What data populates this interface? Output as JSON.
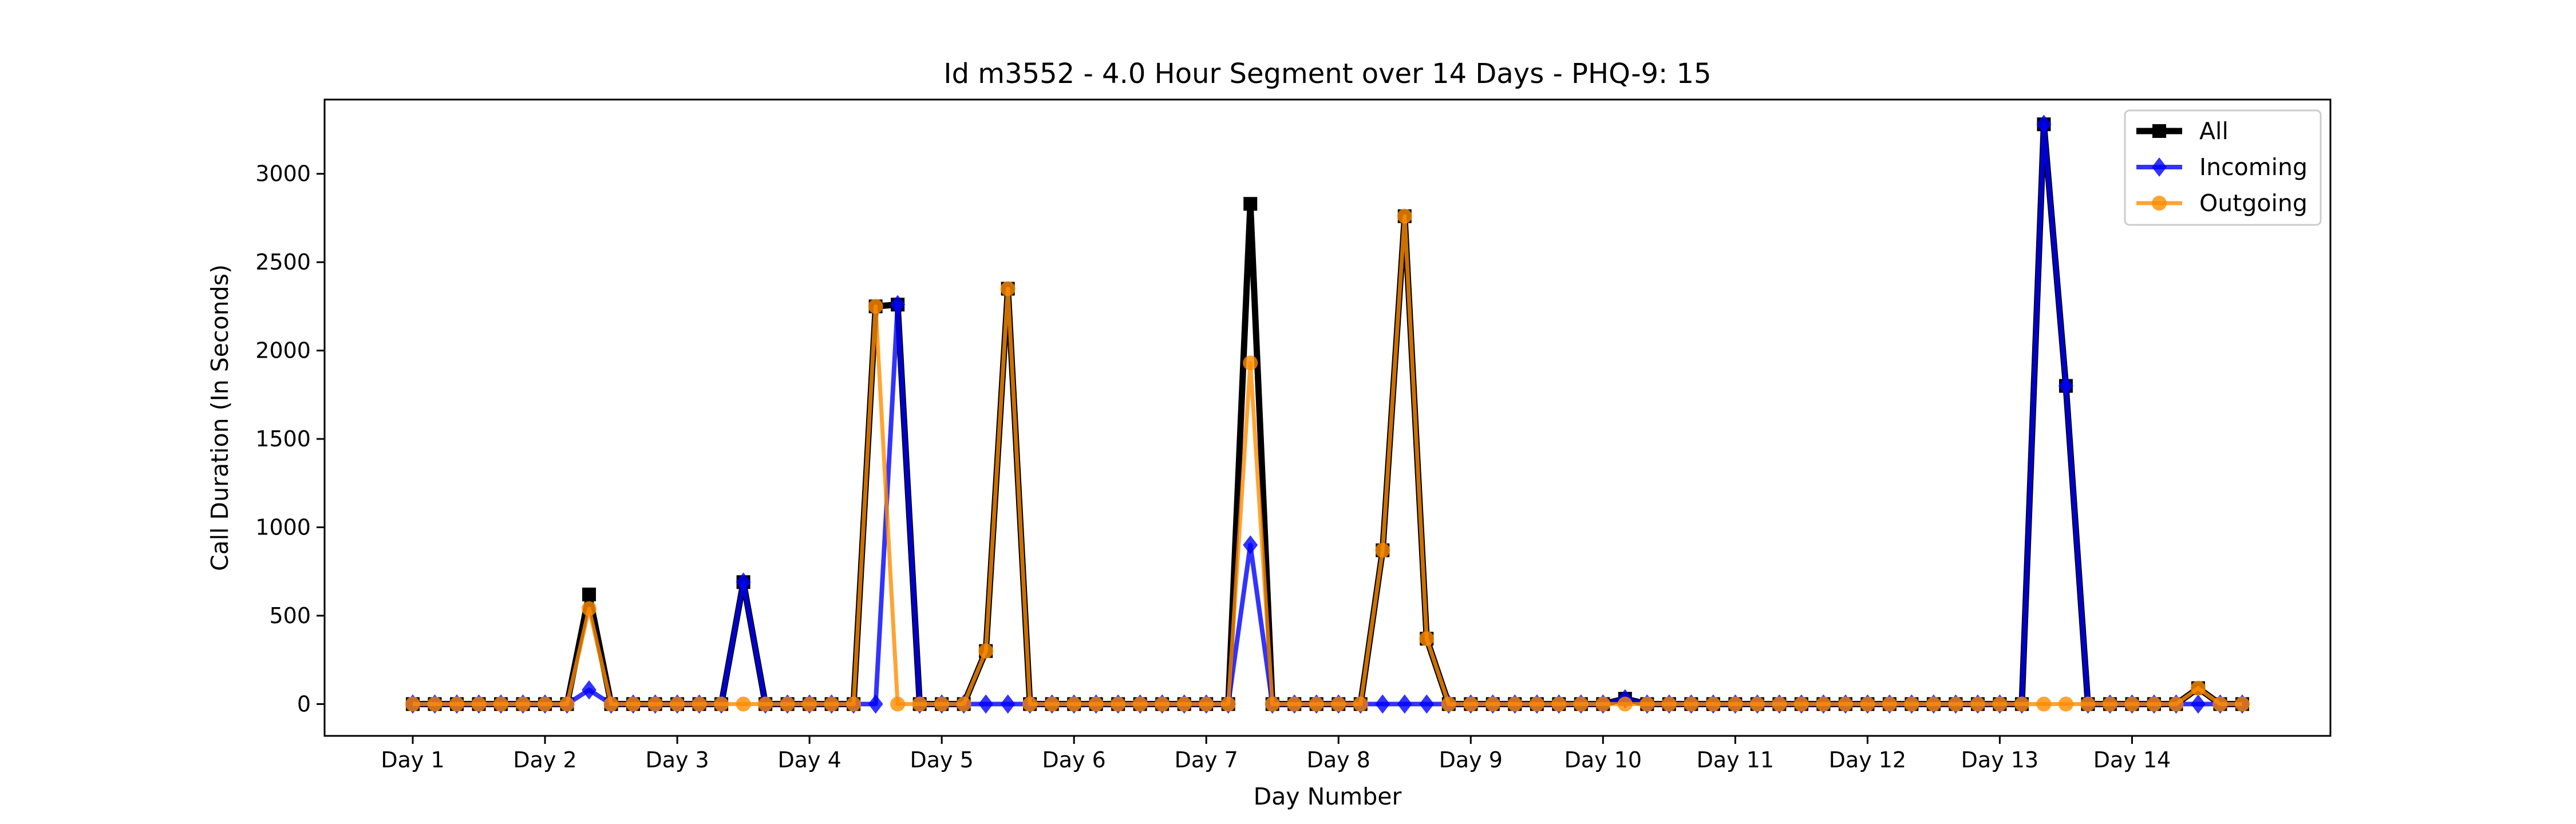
{
  "chart_data": {
    "type": "line",
    "title": "Id m3552 - 4.0 Hour Segment over 14 Days - PHQ-9: 15",
    "xlabel": "Day Number",
    "ylabel": "Call Duration (In Seconds)",
    "x_ticks": [
      "Day 1",
      "Day 2",
      "Day 3",
      "Day 4",
      "Day 5",
      "Day 6",
      "Day 7",
      "Day 8",
      "Day 9",
      "Day 10",
      "Day 11",
      "Day 12",
      "Day 13",
      "Day 14"
    ],
    "y_ticks": [
      0,
      500,
      1000,
      1500,
      2000,
      2500,
      3000
    ],
    "ylim": [
      -180,
      3420
    ],
    "xlim": [
      -4,
      87
    ],
    "legend_position": "top-right",
    "series": [
      {
        "name": "All",
        "color": "#000000",
        "marker": "square",
        "values": [
          0,
          0,
          0,
          0,
          0,
          0,
          0,
          0,
          620,
          0,
          0,
          0,
          0,
          0,
          0,
          690,
          0,
          0,
          0,
          0,
          0,
          2250,
          2260,
          0,
          0,
          0,
          300,
          2350,
          0,
          0,
          0,
          0,
          0,
          0,
          0,
          0,
          0,
          0,
          2830,
          0,
          0,
          0,
          0,
          0,
          870,
          2760,
          370,
          0,
          0,
          0,
          0,
          0,
          0,
          0,
          0,
          30,
          0,
          0,
          0,
          0,
          0,
          0,
          0,
          0,
          0,
          0,
          0,
          0,
          0,
          0,
          0,
          0,
          0,
          0,
          3280,
          1800,
          0,
          0,
          0,
          0,
          0,
          90,
          0,
          0
        ]
      },
      {
        "name": "Incoming",
        "color": "#0000ff",
        "marker": "diamond",
        "values": [
          0,
          0,
          0,
          0,
          0,
          0,
          0,
          0,
          80,
          0,
          0,
          0,
          0,
          0,
          0,
          690,
          0,
          0,
          0,
          0,
          0,
          0,
          2260,
          0,
          0,
          0,
          0,
          0,
          0,
          0,
          0,
          0,
          0,
          0,
          0,
          0,
          0,
          0,
          900,
          0,
          0,
          0,
          0,
          0,
          0,
          0,
          0,
          0,
          0,
          0,
          0,
          0,
          0,
          0,
          0,
          30,
          0,
          0,
          0,
          0,
          0,
          0,
          0,
          0,
          0,
          0,
          0,
          0,
          0,
          0,
          0,
          0,
          0,
          0,
          3280,
          1800,
          0,
          0,
          0,
          0,
          0,
          0,
          0,
          0
        ]
      },
      {
        "name": "Outgoing",
        "color": "#ff8c00",
        "marker": "circle",
        "values": [
          0,
          0,
          0,
          0,
          0,
          0,
          0,
          0,
          540,
          0,
          0,
          0,
          0,
          0,
          0,
          0,
          0,
          0,
          0,
          0,
          0,
          2250,
          0,
          0,
          0,
          0,
          300,
          2350,
          0,
          0,
          0,
          0,
          0,
          0,
          0,
          0,
          0,
          0,
          1930,
          0,
          0,
          0,
          0,
          0,
          870,
          2760,
          370,
          0,
          0,
          0,
          0,
          0,
          0,
          0,
          0,
          0,
          0,
          0,
          0,
          0,
          0,
          0,
          0,
          0,
          0,
          0,
          0,
          0,
          0,
          0,
          0,
          0,
          0,
          0,
          0,
          0,
          0,
          0,
          0,
          0,
          0,
          90,
          0,
          0
        ]
      }
    ]
  }
}
